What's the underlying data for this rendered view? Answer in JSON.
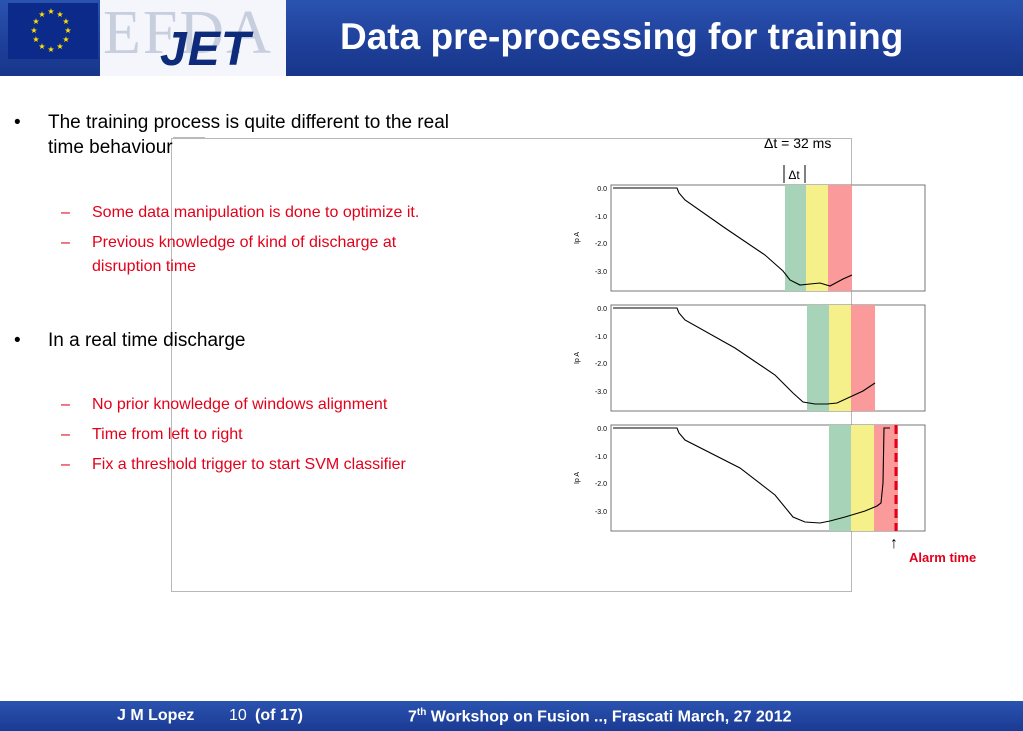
{
  "header": {
    "logo_efda": "EFDA",
    "logo_jet": "JET",
    "title": "Data pre-processing for training"
  },
  "bullets": [
    {
      "text_line1": "The training process is quite different to the real",
      "text_line2": "time behaviour",
      "subs": [
        {
          "line1": "Some data manipulation is done to optimize it.",
          "line2": ""
        },
        {
          "line1": "Previous knowledge of kind of discharge at",
          "line2": "disruption time"
        }
      ]
    },
    {
      "text_line1": "In a real time discharge",
      "text_line2": "",
      "subs": [
        {
          "line1": "No prior knowledge of windows alignment",
          "line2": ""
        },
        {
          "line1": "Time from left to right",
          "line2": ""
        },
        {
          "line1": "Fix a threshold trigger to start SVM classifier",
          "line2": ""
        }
      ]
    }
  ],
  "figure": {
    "delta_t_label": "Δt = 32 ms",
    "delta_t_short": "Δt",
    "alarm_label": "Alarm time",
    "ytick_labels": [
      "0.0",
      "-1.0",
      "-2.0",
      "-3.0"
    ],
    "ylabel": "Ip  A",
    "window_colors": {
      "green": "#a7d3b8",
      "yellow": "#f5f08a",
      "red": "#fb9a9a"
    },
    "alarm_line_color": "#e3001b"
  },
  "footer": {
    "author": "J M Lopez",
    "page": "10",
    "of": "(of 17)",
    "workshop_num": "7",
    "workshop_sup": "th",
    "workshop_rest": " Workshop on Fusion .., Frascati  March, 27 2012"
  }
}
